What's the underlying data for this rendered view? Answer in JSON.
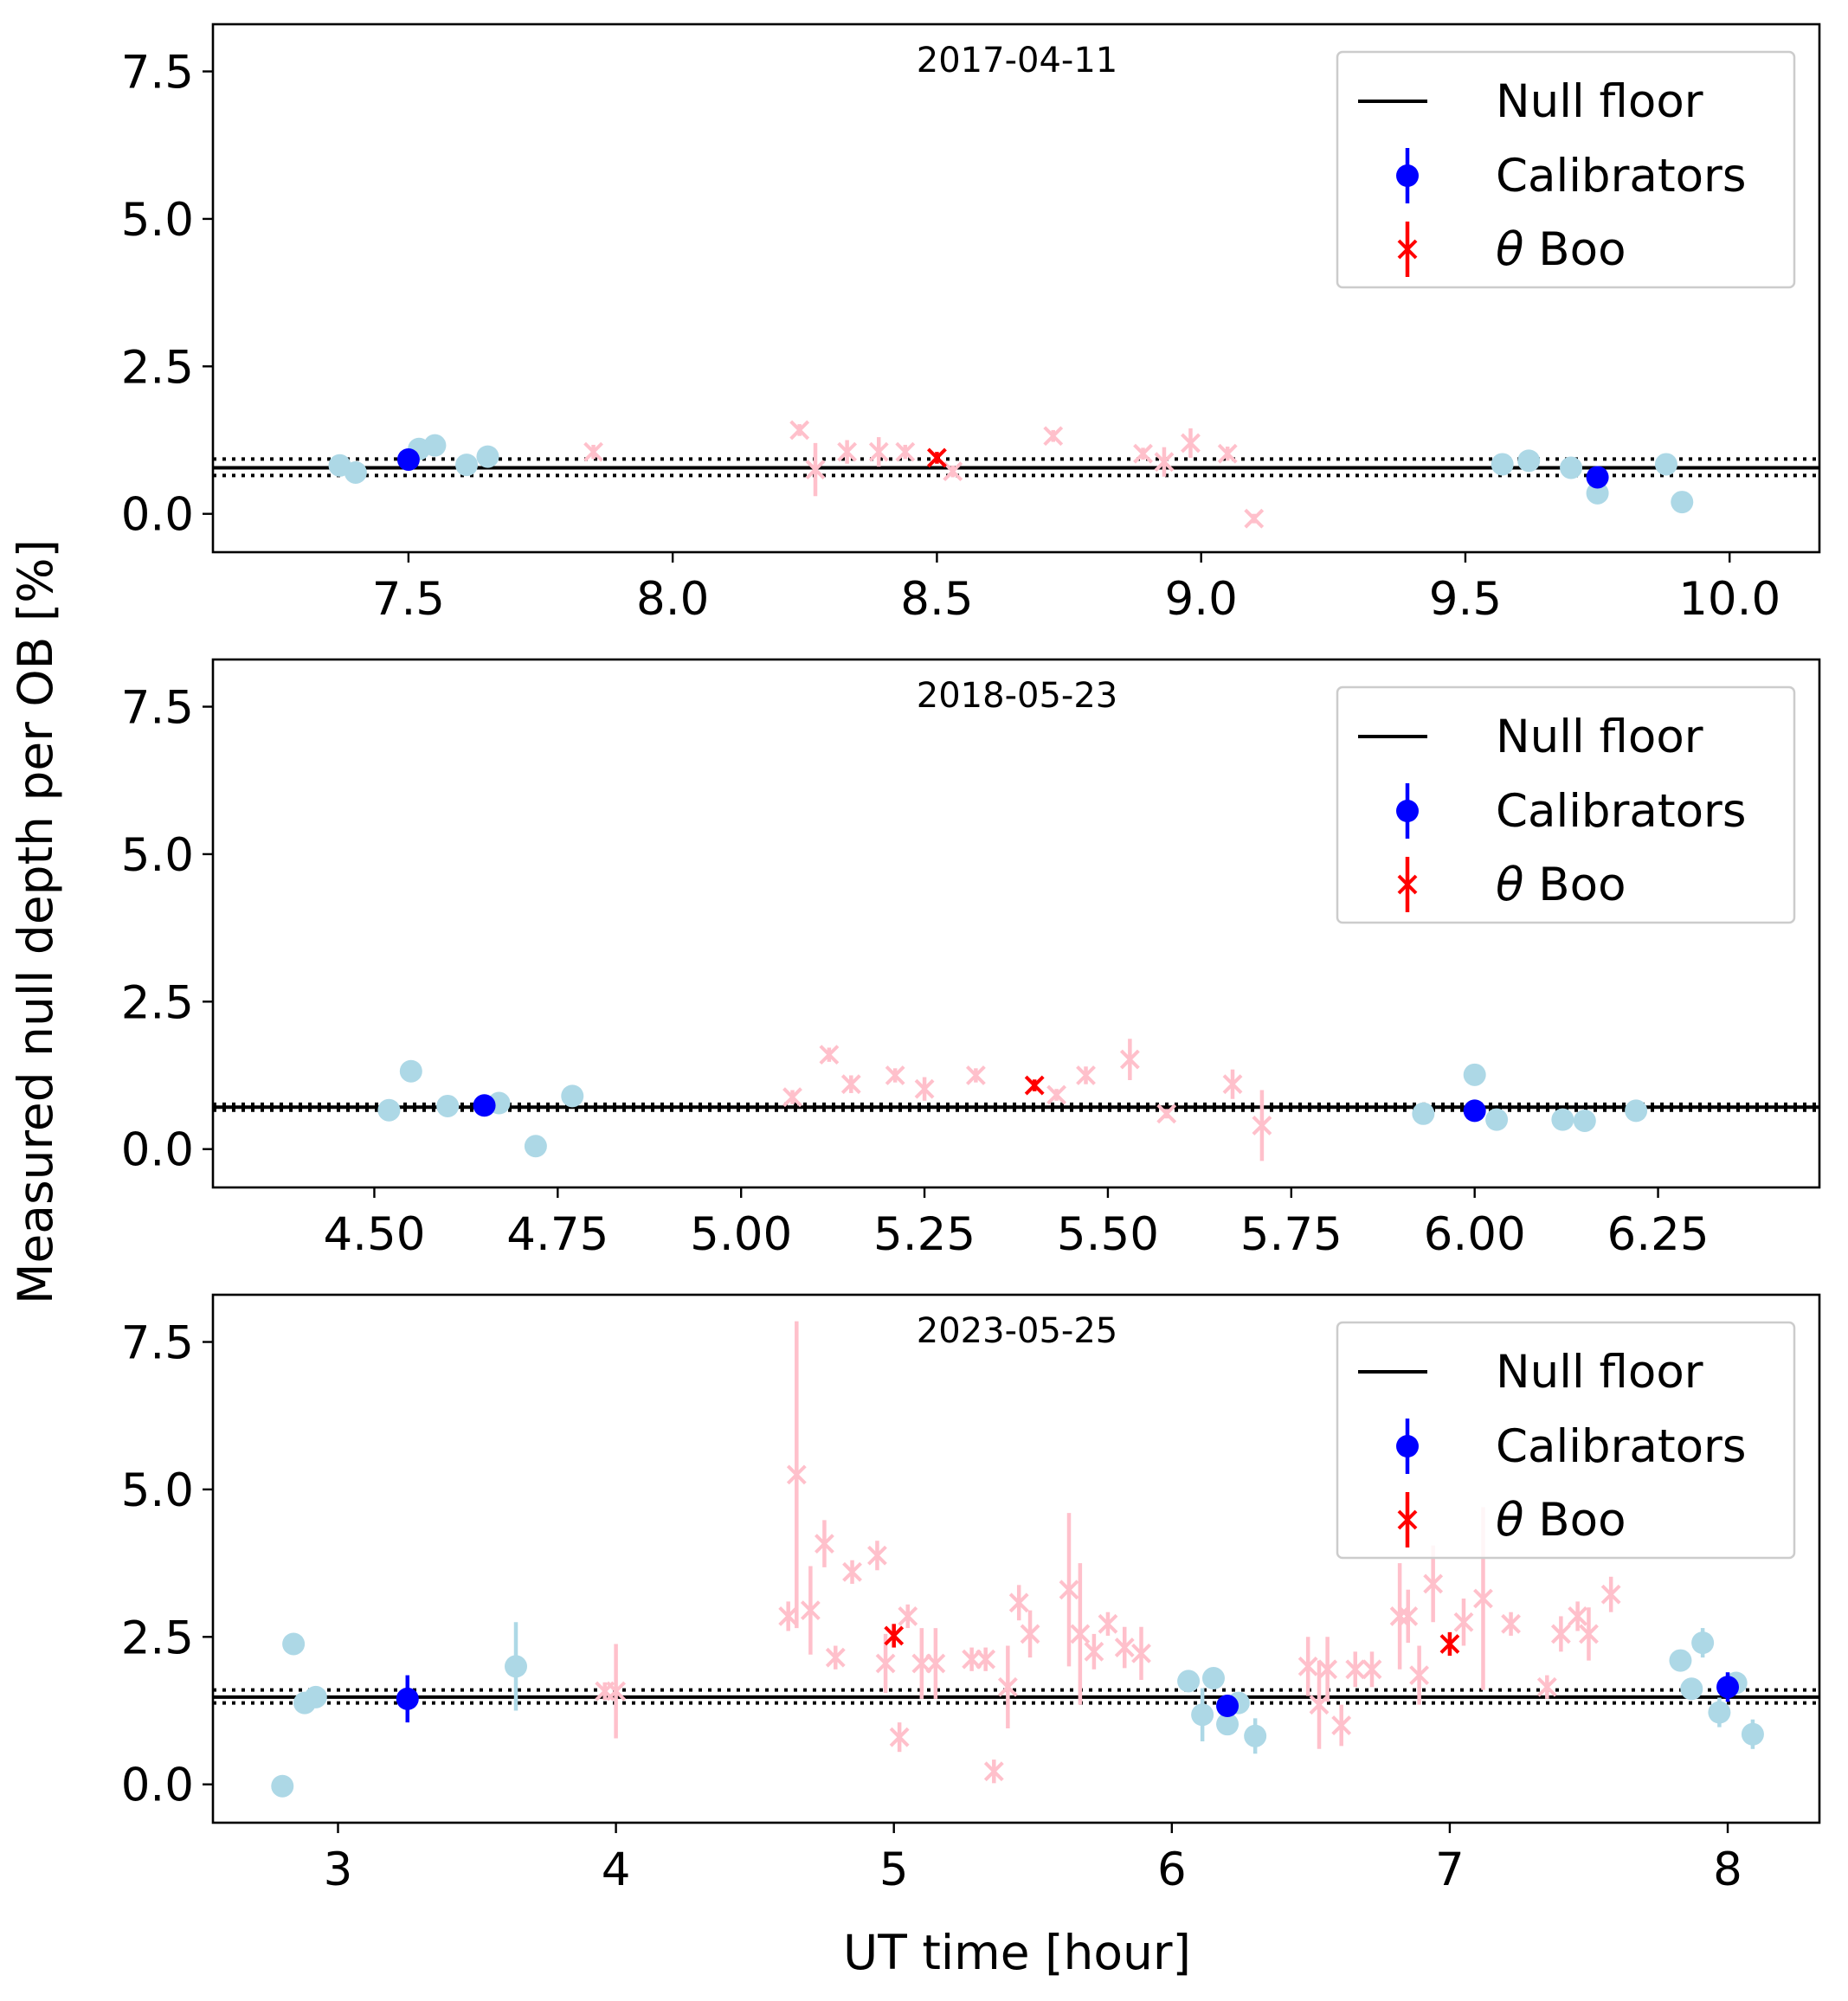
{
  "chart_data": {
    "type": "scatter",
    "ylabel": "Measured null depth per OB [%]",
    "xlabel": "UT time [hour]",
    "legend": {
      "placement": "top-right",
      "entries": [
        {
          "label": "Null floor",
          "marker": "line",
          "color": "#000000"
        },
        {
          "label": "Calibrators",
          "marker": "circle",
          "color": "#0000ff"
        },
        {
          "label_prefix": "θ",
          "label": " Boo",
          "marker": "x",
          "color": "#ff0000"
        }
      ]
    },
    "colors": {
      "calibrator": "#0000ff",
      "calibrator_light": "#add8e6",
      "target": "#ff0000",
      "target_light": "#ffc0cb",
      "floor": "#000000"
    },
    "panels": [
      {
        "date": "2017-04-11",
        "xlim": [
          7.13,
          10.17
        ],
        "ylim": [
          -0.65,
          8.3
        ],
        "xticks": [
          7.5,
          8.0,
          8.5,
          9.0,
          9.5,
          10.0
        ],
        "xtick_labels": [
          "7.5",
          "8.0",
          "8.5",
          "9.0",
          "9.5",
          "10.0"
        ],
        "yticks": [
          0,
          2.5,
          5,
          7.5
        ],
        "ytick_labels": [
          "0.0",
          "2.5",
          "5.0",
          "7.5"
        ],
        "floor": {
          "value": 0.78,
          "lower": 0.65,
          "upper": 0.93
        },
        "cal_light": [
          [
            7.37,
            0.82,
            0
          ],
          [
            7.4,
            0.7,
            0
          ],
          [
            7.52,
            1.1,
            0
          ],
          [
            7.55,
            1.16,
            0
          ],
          [
            7.61,
            0.83,
            0
          ],
          [
            7.65,
            0.97,
            0
          ],
          [
            9.57,
            0.84,
            0
          ],
          [
            9.62,
            0.9,
            0
          ],
          [
            9.7,
            0.78,
            0
          ],
          [
            9.75,
            0.35,
            0
          ],
          [
            9.88,
            0.84,
            0
          ],
          [
            9.91,
            0.2,
            0
          ]
        ],
        "cal_main": [
          [
            7.5,
            0.92,
            0.05
          ],
          [
            9.75,
            0.62,
            0.08
          ]
        ],
        "tgt_light": [
          [
            7.85,
            1.05,
            0.12
          ],
          [
            8.24,
            1.42,
            0.1
          ],
          [
            8.27,
            0.75,
            0.45
          ],
          [
            8.33,
            1.05,
            0.2
          ],
          [
            8.39,
            1.05,
            0.25
          ],
          [
            8.44,
            1.05,
            0.12
          ],
          [
            8.53,
            0.72,
            0.1
          ],
          [
            8.72,
            1.32,
            0.1
          ],
          [
            8.89,
            1.02,
            0.1
          ],
          [
            8.93,
            0.88,
            0.25
          ],
          [
            8.98,
            1.2,
            0.25
          ],
          [
            9.05,
            1.02,
            0.12
          ],
          [
            9.1,
            -0.08,
            0.08
          ]
        ],
        "tgt_main": [
          [
            8.5,
            0.95,
            0.1
          ]
        ]
      },
      {
        "date": "2018-05-23",
        "xlim": [
          4.28,
          6.47
        ],
        "ylim": [
          -0.65,
          8.3
        ],
        "xticks": [
          4.5,
          4.75,
          5.0,
          5.25,
          5.5,
          5.75,
          6.0,
          6.25
        ],
        "xtick_labels": [
          "4.50",
          "4.75",
          "5.00",
          "5.25",
          "5.50",
          "5.75",
          "6.00",
          "6.25"
        ],
        "yticks": [
          0,
          2.5,
          5,
          7.5
        ],
        "ytick_labels": [
          "0.0",
          "2.5",
          "5.0",
          "7.5"
        ],
        "floor": {
          "value": 0.71,
          "lower": 0.66,
          "upper": 0.76
        },
        "cal_light": [
          [
            4.52,
            0.66,
            0
          ],
          [
            4.55,
            1.32,
            0
          ],
          [
            4.6,
            0.73,
            0
          ],
          [
            4.67,
            0.78,
            0
          ],
          [
            4.72,
            0.05,
            0
          ],
          [
            4.77,
            0.9,
            0
          ],
          [
            5.93,
            0.6,
            0
          ],
          [
            6.0,
            1.26,
            0
          ],
          [
            6.03,
            0.5,
            0
          ],
          [
            6.12,
            0.5,
            0
          ],
          [
            6.15,
            0.48,
            0
          ],
          [
            6.22,
            0.65,
            0
          ]
        ],
        "cal_main": [
          [
            4.65,
            0.74,
            0.05
          ],
          [
            6.0,
            0.65,
            0.05
          ]
        ],
        "tgt_light": [
          [
            5.07,
            0.88,
            0.12
          ],
          [
            5.12,
            1.6,
            0.12
          ],
          [
            5.15,
            1.1,
            0.15
          ],
          [
            5.21,
            1.25,
            0.12
          ],
          [
            5.25,
            1.02,
            0.2
          ],
          [
            5.32,
            1.25,
            0.12
          ],
          [
            5.43,
            0.92,
            0.1
          ],
          [
            5.47,
            1.25,
            0.15
          ],
          [
            5.53,
            1.52,
            0.35
          ],
          [
            5.58,
            0.6,
            0.08
          ],
          [
            5.67,
            1.1,
            0.25
          ],
          [
            5.71,
            0.4,
            0.6
          ]
        ],
        "tgt_main": [
          [
            5.4,
            1.08,
            0.1
          ]
        ]
      },
      {
        "date": "2023-05-25",
        "xlim": [
          2.55,
          8.33
        ],
        "ylim": [
          -0.65,
          8.3
        ],
        "xticks": [
          3,
          4,
          5,
          6,
          7,
          8
        ],
        "xtick_labels": [
          "3",
          "4",
          "5",
          "6",
          "7",
          "8"
        ],
        "yticks": [
          0,
          2.5,
          5,
          7.5
        ],
        "ytick_labels": [
          "0.0",
          "2.5",
          "5.0",
          "7.5"
        ],
        "floor": {
          "value": 1.48,
          "lower": 1.38,
          "upper": 1.6
        },
        "cal_light": [
          [
            2.8,
            -0.03,
            0
          ],
          [
            2.84,
            2.38,
            0
          ],
          [
            2.88,
            1.38,
            0
          ],
          [
            2.92,
            1.48,
            0
          ],
          [
            3.64,
            2.0,
            0.75
          ],
          [
            6.06,
            1.75,
            0
          ],
          [
            6.11,
            1.18,
            0.45
          ],
          [
            6.15,
            1.8,
            0.15
          ],
          [
            6.2,
            1.02,
            0
          ],
          [
            6.24,
            1.38,
            0
          ],
          [
            6.3,
            0.82,
            0.3
          ],
          [
            7.83,
            2.1,
            0
          ],
          [
            7.87,
            1.62,
            0
          ],
          [
            7.91,
            2.4,
            0.25
          ],
          [
            7.97,
            1.22,
            0.25
          ],
          [
            8.03,
            1.72,
            0
          ],
          [
            8.09,
            0.85,
            0.25
          ]
        ],
        "cal_main": [
          [
            3.25,
            1.45,
            0.4
          ],
          [
            6.2,
            1.33,
            0.12
          ],
          [
            8.0,
            1.65,
            0.25
          ]
        ],
        "tgt_light": [
          [
            3.96,
            1.58,
            0.15
          ],
          [
            4.0,
            1.58,
            0.8
          ],
          [
            4.62,
            2.85,
            0.25
          ],
          [
            4.65,
            5.25,
            2.6
          ],
          [
            4.7,
            2.95,
            0.75
          ],
          [
            4.75,
            4.08,
            0.4
          ],
          [
            4.79,
            2.15,
            0.2
          ],
          [
            4.85,
            3.6,
            0.2
          ],
          [
            4.94,
            3.88,
            0.25
          ],
          [
            4.97,
            2.05,
            0.5
          ],
          [
            5.02,
            0.8,
            0.25
          ],
          [
            5.05,
            2.85,
            0.2
          ],
          [
            5.1,
            2.05,
            0.6
          ],
          [
            5.15,
            2.05,
            0.6
          ],
          [
            5.28,
            2.12,
            0.2
          ],
          [
            5.33,
            2.12,
            0.2
          ],
          [
            5.36,
            0.22,
            0.2
          ],
          [
            5.41,
            1.65,
            0.7
          ],
          [
            5.45,
            3.08,
            0.3
          ],
          [
            5.49,
            2.55,
            0.4
          ],
          [
            5.63,
            3.3,
            1.3
          ],
          [
            5.67,
            2.55,
            1.2
          ],
          [
            5.72,
            2.25,
            0.3
          ],
          [
            5.77,
            2.72,
            0.2
          ],
          [
            5.83,
            2.32,
            0.35
          ],
          [
            5.89,
            2.22,
            0.45
          ],
          [
            6.49,
            2.0,
            0.5
          ],
          [
            6.53,
            1.35,
            0.75
          ],
          [
            6.56,
            1.95,
            0.55
          ],
          [
            6.61,
            1.0,
            0.35
          ],
          [
            6.66,
            1.95,
            0.3
          ],
          [
            6.72,
            1.95,
            0.3
          ],
          [
            6.82,
            2.85,
            0.9
          ],
          [
            6.85,
            2.85,
            0.45
          ],
          [
            6.89,
            1.85,
            0.5
          ],
          [
            6.94,
            3.4,
            0.65
          ],
          [
            7.05,
            2.75,
            0.4
          ],
          [
            7.12,
            3.15,
            1.55
          ],
          [
            7.22,
            2.72,
            0.2
          ],
          [
            7.35,
            1.65,
            0.2
          ],
          [
            7.4,
            2.55,
            0.3
          ],
          [
            7.46,
            2.85,
            0.25
          ],
          [
            7.5,
            2.55,
            0.45
          ],
          [
            7.58,
            3.22,
            0.3
          ]
        ],
        "tgt_main": [
          [
            5.0,
            2.52,
            0.2
          ],
          [
            7.0,
            2.38,
            0.2
          ]
        ]
      }
    ]
  }
}
